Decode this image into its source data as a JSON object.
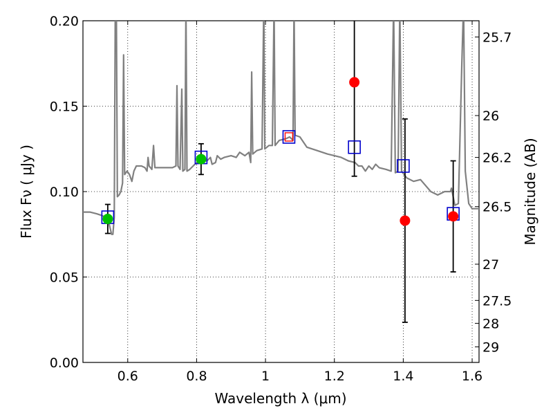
{
  "chart_data": {
    "type": "scatter",
    "xlabel": "Wavelength  λ (μm)",
    "ylabel": "Flux  Fν  ( μJy )",
    "y2label": "Magnitude (AB)",
    "xlim": [
      0.47,
      1.62
    ],
    "ylim": [
      0.0,
      0.2
    ],
    "grid": true,
    "x_ticks": [
      {
        "value": 0.6,
        "label": "0.6"
      },
      {
        "value": 0.8,
        "label": "0.8"
      },
      {
        "value": 1.0,
        "label": "1"
      },
      {
        "value": 1.2,
        "label": "1.2"
      },
      {
        "value": 1.4,
        "label": "1.4"
      },
      {
        "value": 1.6,
        "label": "1.6"
      }
    ],
    "y_ticks": [
      {
        "value": 0.0,
        "label": "0.00"
      },
      {
        "value": 0.05,
        "label": "0.05"
      },
      {
        "value": 0.1,
        "label": "0.10"
      },
      {
        "value": 0.15,
        "label": "0.15"
      },
      {
        "value": 0.2,
        "label": "0.20"
      }
    ],
    "y2_ticks": [
      {
        "flux": 0.1905,
        "label": "25.7"
      },
      {
        "flux": 0.1445,
        "label": "26"
      },
      {
        "flux": 0.12,
        "label": "26.2"
      },
      {
        "flux": 0.0912,
        "label": "26.5"
      },
      {
        "flux": 0.0575,
        "label": "27"
      },
      {
        "flux": 0.0363,
        "label": "27.5"
      },
      {
        "flux": 0.0229,
        "label": "28"
      },
      {
        "flux": 0.0091,
        "label": "29"
      }
    ],
    "colors": {
      "model": "#808080",
      "green": "#00c000",
      "red": "#ff0000",
      "blue": "#0000cc",
      "errorbar": "#000000"
    },
    "model_spectrum": [
      [
        0.47,
        0.088
      ],
      [
        0.49,
        0.088
      ],
      [
        0.51,
        0.087
      ],
      [
        0.525,
        0.086
      ],
      [
        0.535,
        0.085
      ],
      [
        0.545,
        0.082
      ],
      [
        0.553,
        0.075
      ],
      [
        0.557,
        0.075
      ],
      [
        0.561,
        0.085
      ],
      [
        0.564,
        0.21
      ],
      [
        0.567,
        0.21
      ],
      [
        0.57,
        0.097
      ],
      [
        0.575,
        0.098
      ],
      [
        0.58,
        0.1
      ],
      [
        0.585,
        0.105
      ],
      [
        0.588,
        0.18
      ],
      [
        0.591,
        0.11
      ],
      [
        0.598,
        0.112
      ],
      [
        0.605,
        0.11
      ],
      [
        0.612,
        0.106
      ],
      [
        0.618,
        0.112
      ],
      [
        0.625,
        0.115
      ],
      [
        0.64,
        0.115
      ],
      [
        0.65,
        0.114
      ],
      [
        0.656,
        0.112
      ],
      [
        0.659,
        0.12
      ],
      [
        0.662,
        0.115
      ],
      [
        0.67,
        0.113
      ],
      [
        0.675,
        0.127
      ],
      [
        0.679,
        0.114
      ],
      [
        0.69,
        0.114
      ],
      [
        0.71,
        0.114
      ],
      [
        0.73,
        0.114
      ],
      [
        0.74,
        0.115
      ],
      [
        0.743,
        0.162
      ],
      [
        0.746,
        0.115
      ],
      [
        0.752,
        0.113
      ],
      [
        0.757,
        0.16
      ],
      [
        0.76,
        0.112
      ],
      [
        0.766,
        0.113
      ],
      [
        0.769,
        0.21
      ],
      [
        0.772,
        0.112
      ],
      [
        0.78,
        0.113
      ],
      [
        0.795,
        0.116
      ],
      [
        0.81,
        0.118
      ],
      [
        0.83,
        0.118
      ],
      [
        0.84,
        0.12
      ],
      [
        0.845,
        0.116
      ],
      [
        0.855,
        0.117
      ],
      [
        0.86,
        0.121
      ],
      [
        0.87,
        0.119
      ],
      [
        0.88,
        0.12
      ],
      [
        0.9,
        0.121
      ],
      [
        0.915,
        0.12
      ],
      [
        0.925,
        0.123
      ],
      [
        0.94,
        0.121
      ],
      [
        0.952,
        0.123
      ],
      [
        0.957,
        0.117
      ],
      [
        0.96,
        0.17
      ],
      [
        0.963,
        0.122
      ],
      [
        0.975,
        0.124
      ],
      [
        0.99,
        0.125
      ],
      [
        0.995,
        0.21
      ],
      [
        0.998,
        0.125
      ],
      [
        1.01,
        0.127
      ],
      [
        1.02,
        0.127
      ],
      [
        1.025,
        0.21
      ],
      [
        1.028,
        0.127
      ],
      [
        1.04,
        0.13
      ],
      [
        1.06,
        0.131
      ],
      [
        1.07,
        0.132
      ],
      [
        1.08,
        0.13
      ],
      [
        1.083,
        0.21
      ],
      [
        1.086,
        0.133
      ],
      [
        1.1,
        0.132
      ],
      [
        1.12,
        0.126
      ],
      [
        1.15,
        0.124
      ],
      [
        1.18,
        0.122
      ],
      [
        1.2,
        0.121
      ],
      [
        1.22,
        0.12
      ],
      [
        1.24,
        0.118
      ],
      [
        1.26,
        0.117
      ],
      [
        1.27,
        0.115
      ],
      [
        1.28,
        0.115
      ],
      [
        1.29,
        0.112
      ],
      [
        1.3,
        0.115
      ],
      [
        1.31,
        0.113
      ],
      [
        1.32,
        0.116
      ],
      [
        1.33,
        0.114
      ],
      [
        1.35,
        0.113
      ],
      [
        1.365,
        0.112
      ],
      [
        1.372,
        0.21
      ],
      [
        1.377,
        0.111
      ],
      [
        1.385,
        0.112
      ],
      [
        1.39,
        0.21
      ],
      [
        1.395,
        0.112
      ],
      [
        1.41,
        0.108
      ],
      [
        1.43,
        0.106
      ],
      [
        1.45,
        0.107
      ],
      [
        1.48,
        0.1
      ],
      [
        1.5,
        0.098
      ],
      [
        1.52,
        0.1
      ],
      [
        1.537,
        0.1
      ],
      [
        1.54,
        0.102
      ],
      [
        1.55,
        0.092
      ],
      [
        1.56,
        0.093
      ],
      [
        1.57,
        0.175
      ],
      [
        1.575,
        0.21
      ],
      [
        1.58,
        0.112
      ],
      [
        1.59,
        0.093
      ],
      [
        1.6,
        0.09
      ],
      [
        1.62,
        0.09
      ]
    ],
    "filled_points": [
      {
        "x": 0.542,
        "y": 0.084,
        "err": 0.0085,
        "color": "green"
      },
      {
        "x": 0.813,
        "y": 0.119,
        "err": 0.009,
        "color": "green"
      },
      {
        "x": 1.068,
        "y": 0.132,
        "color": "red",
        "square": true
      },
      {
        "x": 1.258,
        "y": 0.164,
        "err": 0.055,
        "color": "red"
      },
      {
        "x": 1.405,
        "y": 0.083,
        "err": 0.0595,
        "color": "red"
      },
      {
        "x": 1.545,
        "y": 0.0855,
        "err": 0.0325,
        "color": "red"
      }
    ],
    "model_squares": [
      {
        "x": 0.542,
        "y": 0.085
      },
      {
        "x": 0.813,
        "y": 0.12
      },
      {
        "x": 1.068,
        "y": 0.132
      },
      {
        "x": 1.258,
        "y": 0.126
      },
      {
        "x": 1.4,
        "y": 0.115
      },
      {
        "x": 1.545,
        "y": 0.087
      }
    ]
  }
}
